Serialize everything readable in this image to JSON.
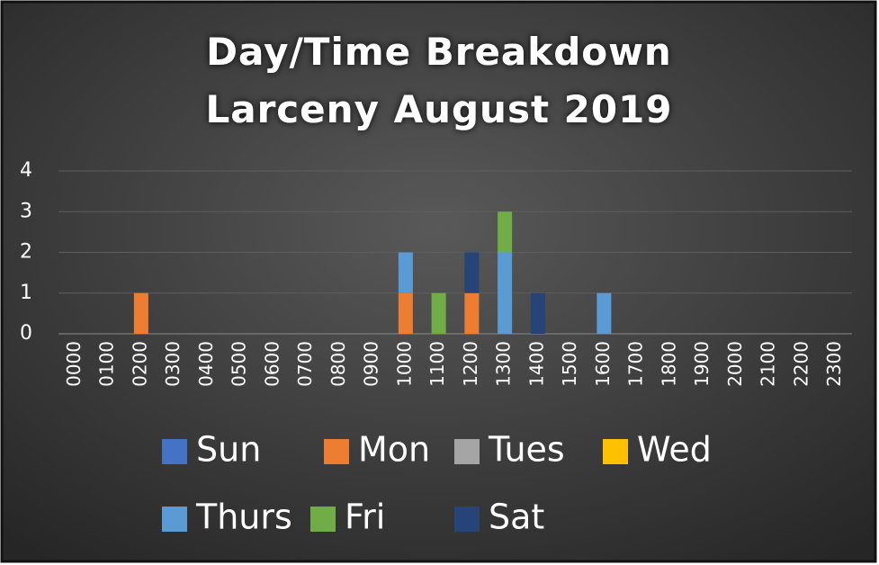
{
  "chart_data": {
    "type": "stacked_bar",
    "title": [
      "Day/Time Breakdown",
      "Larceny August 2019"
    ],
    "categories": [
      "0000",
      "0100",
      "0200",
      "0300",
      "0400",
      "0500",
      "0600",
      "0700",
      "0800",
      "0900",
      "1000",
      "1100",
      "1200",
      "1300",
      "1400",
      "1500",
      "1600",
      "1700",
      "1800",
      "1900",
      "2000",
      "2100",
      "2200",
      "2300"
    ],
    "series": [
      {
        "name": "Sun",
        "color": "#4472c4",
        "values": [
          0,
          0,
          0,
          0,
          0,
          0,
          0,
          0,
          0,
          0,
          0,
          0,
          0,
          0,
          0,
          0,
          0,
          0,
          0,
          0,
          0,
          0,
          0,
          0
        ]
      },
      {
        "name": "Mon",
        "color": "#ed7d31",
        "values": [
          0,
          0,
          1,
          0,
          0,
          0,
          0,
          0,
          0,
          0,
          1,
          0,
          1,
          0,
          0,
          0,
          0,
          0,
          0,
          0,
          0,
          0,
          0,
          0
        ]
      },
      {
        "name": "Tues",
        "color": "#a5a5a5",
        "values": [
          0,
          0,
          0,
          0,
          0,
          0,
          0,
          0,
          0,
          0,
          0,
          0,
          0,
          0,
          0,
          0,
          0,
          0,
          0,
          0,
          0,
          0,
          0,
          0
        ]
      },
      {
        "name": "Wed",
        "color": "#ffc000",
        "values": [
          0,
          0,
          0,
          0,
          0,
          0,
          0,
          0,
          0,
          0,
          0,
          0,
          0,
          0,
          0,
          0,
          0,
          0,
          0,
          0,
          0,
          0,
          0,
          0
        ]
      },
      {
        "name": "Thurs",
        "color": "#5b9bd5",
        "values": [
          0,
          0,
          0,
          0,
          0,
          0,
          0,
          0,
          0,
          0,
          1,
          0,
          0,
          2,
          0,
          0,
          1,
          0,
          0,
          0,
          0,
          0,
          0,
          0
        ]
      },
      {
        "name": "Fri",
        "color": "#70ad47",
        "values": [
          0,
          0,
          0,
          0,
          0,
          0,
          0,
          0,
          0,
          0,
          0,
          1,
          0,
          1,
          0,
          0,
          0,
          0,
          0,
          0,
          0,
          0,
          0,
          0
        ]
      },
      {
        "name": "Sat",
        "color": "#264478",
        "values": [
          0,
          0,
          0,
          0,
          0,
          0,
          0,
          0,
          0,
          0,
          0,
          0,
          1,
          0,
          1,
          0,
          0,
          0,
          0,
          0,
          0,
          0,
          0,
          0
        ]
      }
    ],
    "ylim": [
      0,
      4
    ],
    "yticks": [
      0,
      1,
      2,
      3,
      4
    ],
    "grid": true,
    "legend": "bottom"
  }
}
